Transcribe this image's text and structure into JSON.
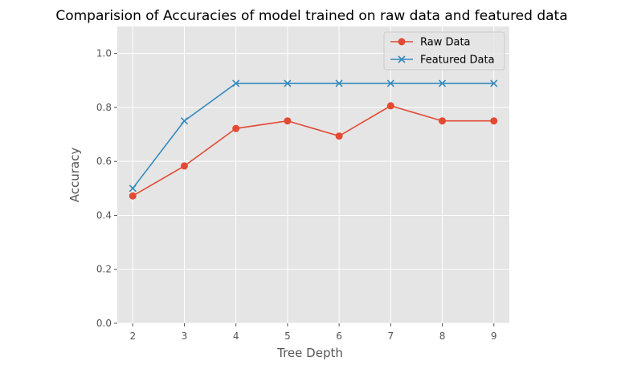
{
  "chart_data": {
    "type": "line",
    "title": "Comparision of Accuracies of model trained on raw data and featured data",
    "xlabel": "Tree Depth",
    "ylabel": "Accuracy",
    "x": [
      2,
      3,
      4,
      5,
      6,
      7,
      8,
      9
    ],
    "xlim": [
      1.7,
      9.3
    ],
    "ylim": [
      0,
      1.1
    ],
    "yticks": [
      0.0,
      0.2,
      0.4,
      0.6,
      0.8,
      1.0
    ],
    "ytick_labels": [
      "0.0",
      "0.2",
      "0.4",
      "0.6",
      "0.8",
      "1.0"
    ],
    "xtick_labels": [
      "2",
      "3",
      "4",
      "5",
      "6",
      "7",
      "8",
      "9"
    ],
    "grid": true,
    "legend_position": "upper-right",
    "series": [
      {
        "name": "Raw Data",
        "marker": "circle",
        "color": "#E24A33",
        "values": [
          0.472,
          0.583,
          0.722,
          0.75,
          0.694,
          0.806,
          0.75,
          0.75
        ]
      },
      {
        "name": "Featured Data",
        "marker": "x",
        "color": "#348ABD",
        "values": [
          0.5,
          0.75,
          0.889,
          0.889,
          0.889,
          0.889,
          0.889,
          0.889
        ]
      }
    ]
  }
}
